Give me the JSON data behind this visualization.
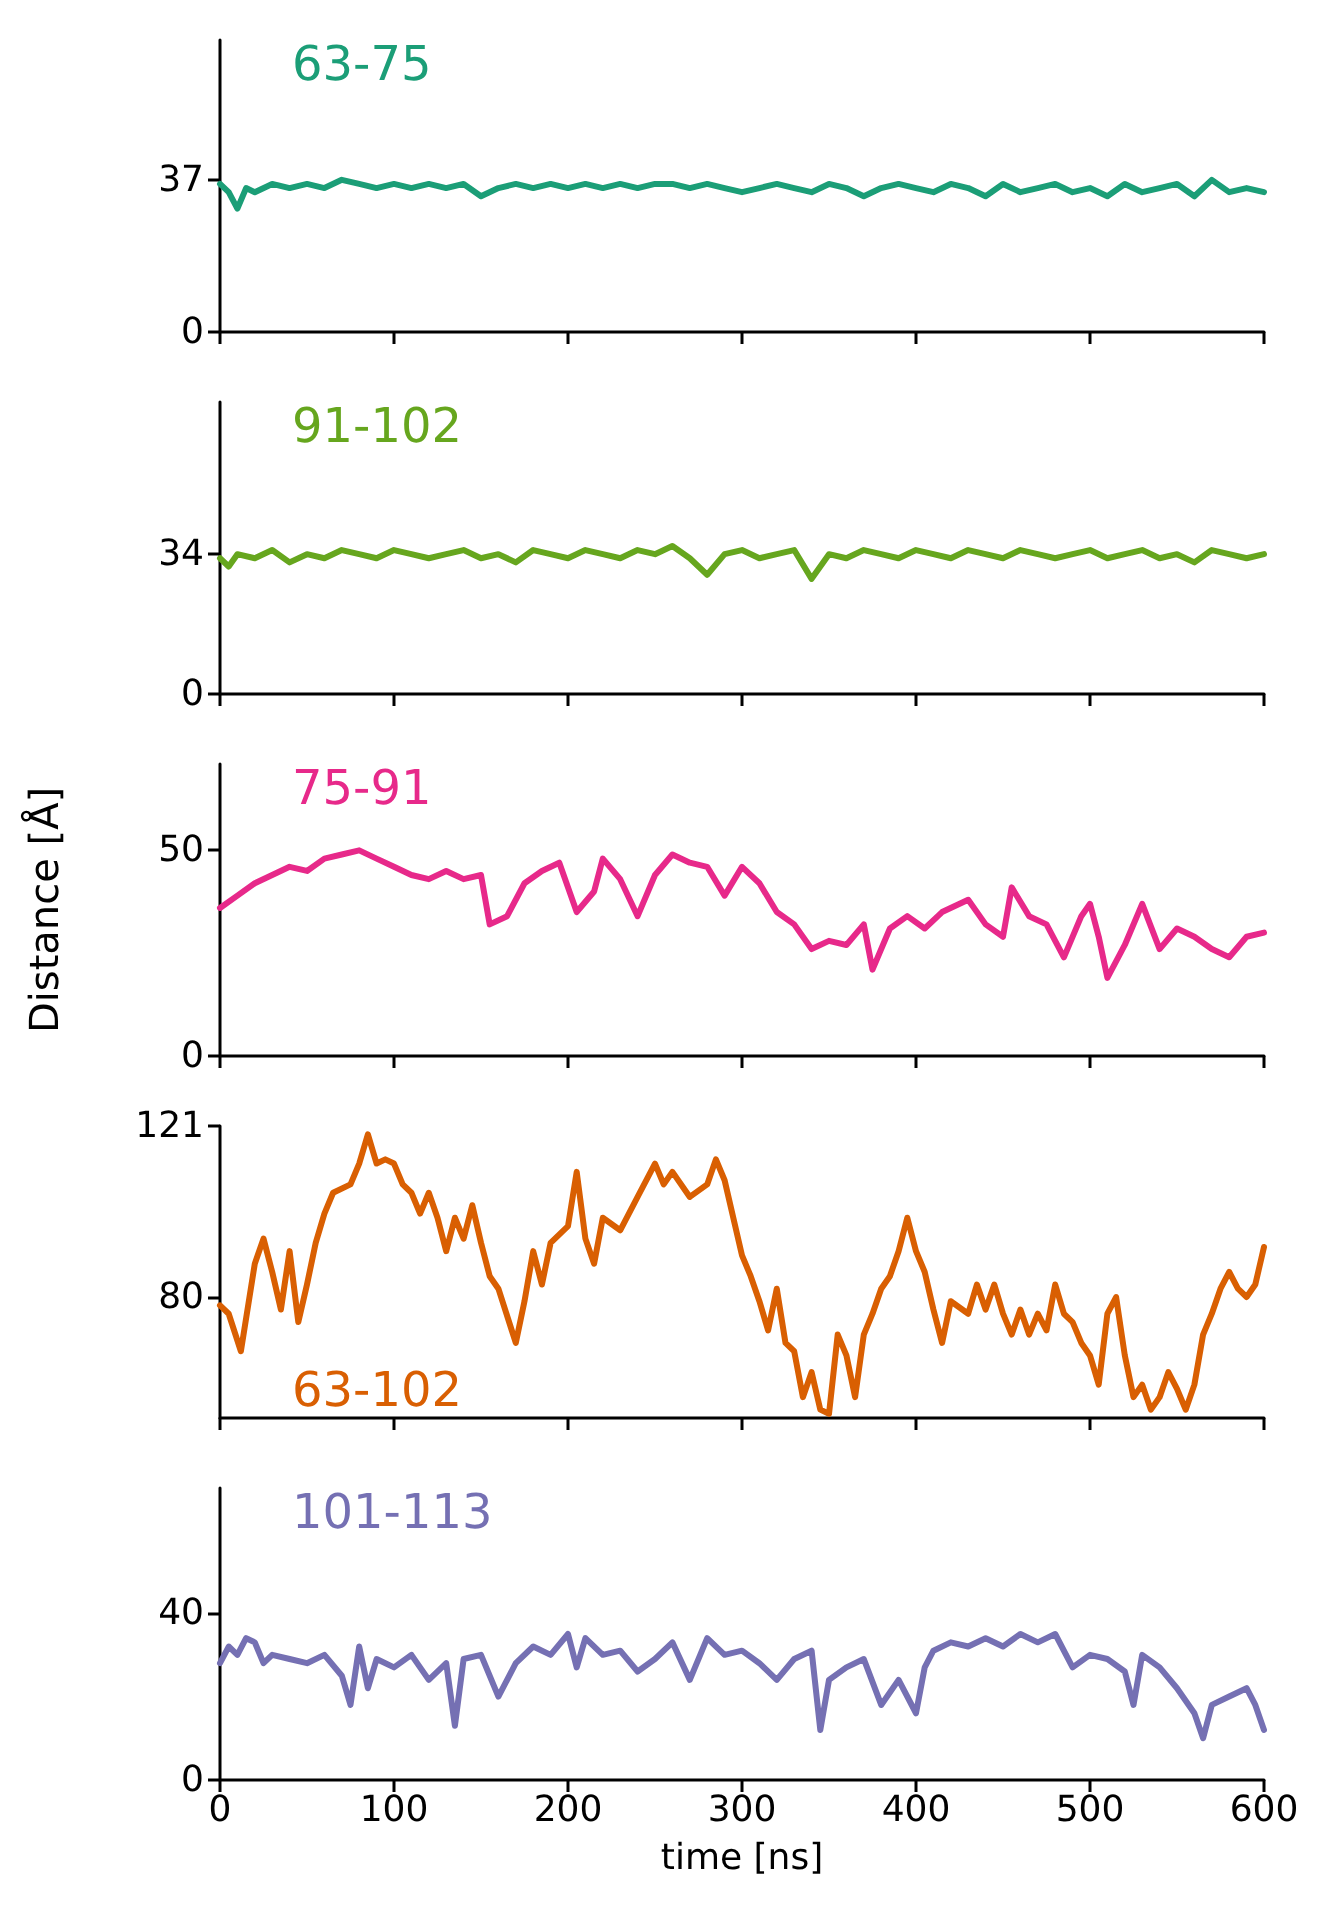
{
  "chart_data": [
    {
      "type": "line",
      "legend": "top left",
      "tick_labels": "y",
      "xlim": [
        0,
        600
      ],
      "xticks": [
        0,
        100,
        200,
        300,
        400,
        500,
        600
      ],
      "ylim": [
        0,
        71
      ],
      "yticks": [
        0,
        37
      ],
      "x": [
        0,
        5,
        10,
        15,
        20,
        30,
        40,
        50,
        60,
        70,
        80,
        90,
        100,
        110,
        120,
        130,
        140,
        150,
        160,
        170,
        180,
        190,
        200,
        210,
        220,
        230,
        240,
        250,
        260,
        270,
        280,
        290,
        300,
        310,
        320,
        330,
        340,
        350,
        360,
        370,
        380,
        390,
        400,
        410,
        420,
        430,
        440,
        450,
        460,
        470,
        480,
        490,
        500,
        510,
        520,
        530,
        540,
        550,
        560,
        570,
        580,
        590,
        600
      ],
      "series": [
        {
          "name": "63-75",
          "color": "#1b9e77",
          "values": [
            36,
            34,
            30,
            35,
            34,
            36,
            35,
            36,
            35,
            37,
            36,
            35,
            36,
            35,
            36,
            35,
            36,
            33,
            35,
            36,
            35,
            36,
            35,
            36,
            35,
            36,
            35,
            36,
            36,
            35,
            36,
            35,
            34,
            35,
            36,
            35,
            34,
            36,
            35,
            33,
            35,
            36,
            35,
            34,
            36,
            35,
            33,
            36,
            34,
            35,
            36,
            34,
            35,
            33,
            36,
            34,
            35,
            36,
            33,
            37,
            34,
            35,
            34
          ]
        }
      ]
    },
    {
      "type": "line",
      "legend": "top left",
      "tick_labels": "y",
      "xlim": [
        0,
        600
      ],
      "xticks": [
        0,
        100,
        200,
        300,
        400,
        500,
        600
      ],
      "ylim": [
        0,
        71
      ],
      "yticks": [
        0,
        34
      ],
      "x": [
        0,
        5,
        10,
        20,
        30,
        40,
        50,
        60,
        70,
        80,
        90,
        100,
        110,
        120,
        130,
        140,
        150,
        160,
        170,
        180,
        190,
        200,
        210,
        220,
        230,
        240,
        250,
        260,
        270,
        280,
        290,
        300,
        310,
        320,
        330,
        340,
        350,
        360,
        370,
        380,
        390,
        400,
        410,
        420,
        430,
        440,
        450,
        460,
        470,
        480,
        490,
        500,
        510,
        520,
        530,
        540,
        550,
        560,
        570,
        580,
        590,
        600
      ],
      "series": [
        {
          "name": "91-102",
          "color": "#66a61e",
          "values": [
            33,
            31,
            34,
            33,
            35,
            32,
            34,
            33,
            35,
            34,
            33,
            35,
            34,
            33,
            34,
            35,
            33,
            34,
            32,
            35,
            34,
            33,
            35,
            34,
            33,
            35,
            34,
            36,
            33,
            29,
            34,
            35,
            33,
            34,
            35,
            28,
            34,
            33,
            35,
            34,
            33,
            35,
            34,
            33,
            35,
            34,
            33,
            35,
            34,
            33,
            34,
            35,
            33,
            34,
            35,
            33,
            34,
            32,
            35,
            34,
            33,
            34
          ]
        }
      ]
    },
    {
      "type": "line",
      "legend": "top left",
      "tick_labels": "y",
      "ylabel": "Distance [Å]",
      "xlim": [
        0,
        600
      ],
      "xticks": [
        0,
        100,
        200,
        300,
        400,
        500,
        600
      ],
      "ylim": [
        0,
        71
      ],
      "yticks": [
        0,
        50
      ],
      "x": [
        0,
        10,
        20,
        30,
        40,
        50,
        60,
        70,
        80,
        90,
        100,
        110,
        120,
        130,
        140,
        150,
        155,
        165,
        175,
        185,
        195,
        205,
        215,
        220,
        230,
        240,
        250,
        260,
        270,
        280,
        290,
        300,
        310,
        320,
        330,
        340,
        350,
        360,
        370,
        375,
        385,
        395,
        405,
        415,
        430,
        440,
        450,
        455,
        465,
        475,
        485,
        495,
        500,
        505,
        510,
        520,
        530,
        540,
        550,
        560,
        570,
        580,
        590,
        600
      ],
      "series": [
        {
          "name": "75-91",
          "color": "#e7298a",
          "values": [
            36,
            39,
            42,
            44,
            46,
            45,
            48,
            49,
            50,
            48,
            46,
            44,
            43,
            45,
            43,
            44,
            32,
            34,
            42,
            45,
            47,
            35,
            40,
            48,
            43,
            34,
            44,
            49,
            47,
            46,
            39,
            46,
            42,
            35,
            32,
            26,
            28,
            27,
            32,
            21,
            31,
            34,
            31,
            35,
            38,
            32,
            29,
            41,
            34,
            32,
            24,
            34,
            37,
            29,
            19,
            27,
            37,
            26,
            31,
            29,
            26,
            24,
            29,
            30
          ]
        }
      ]
    },
    {
      "type": "line",
      "legend": "bottom left",
      "tick_labels": "y",
      "xlim": [
        0,
        600
      ],
      "xticks": [
        0,
        100,
        200,
        300,
        400,
        500,
        600
      ],
      "ylim": [
        51,
        121
      ],
      "yticks": [
        80,
        121
      ],
      "x": [
        0,
        5,
        12,
        20,
        25,
        30,
        35,
        40,
        45,
        50,
        55,
        60,
        65,
        75,
        80,
        85,
        90,
        95,
        100,
        105,
        110,
        115,
        120,
        125,
        130,
        135,
        140,
        145,
        150,
        155,
        160,
        170,
        175,
        180,
        185,
        190,
        200,
        205,
        210,
        215,
        220,
        230,
        240,
        250,
        255,
        260,
        270,
        280,
        285,
        290,
        300,
        305,
        310,
        315,
        320,
        325,
        330,
        335,
        340,
        345,
        350,
        355,
        360,
        365,
        370,
        375,
        380,
        385,
        390,
        395,
        400,
        405,
        410,
        415,
        420,
        430,
        435,
        440,
        445,
        450,
        455,
        460,
        465,
        470,
        475,
        480,
        485,
        490,
        495,
        500,
        505,
        510,
        515,
        520,
        525,
        530,
        535,
        540,
        545,
        550,
        555,
        560,
        565,
        570,
        575,
        580,
        585,
        590,
        595,
        600
      ],
      "series": [
        {
          "name": "63-102",
          "color": "#d95f02",
          "values": [
            78,
            76,
            67,
            88,
            94,
            86,
            77,
            91,
            74,
            83,
            93,
            100,
            105,
            107,
            112,
            119,
            112,
            113,
            112,
            107,
            105,
            100,
            105,
            99,
            91,
            99,
            94,
            102,
            93,
            85,
            82,
            69,
            79,
            91,
            83,
            93,
            97,
            110,
            94,
            88,
            99,
            96,
            104,
            112,
            107,
            110,
            104,
            107,
            113,
            108,
            90,
            85,
            79,
            72,
            82,
            69,
            67,
            56,
            62,
            53,
            52,
            71,
            66,
            56,
            71,
            76,
            82,
            85,
            91,
            99,
            91,
            86,
            77,
            69,
            79,
            76,
            83,
            77,
            83,
            76,
            71,
            77,
            71,
            76,
            72,
            83,
            76,
            74,
            69,
            66,
            59,
            76,
            80,
            66,
            56,
            59,
            53,
            56,
            62,
            58,
            53,
            59,
            71,
            76,
            82,
            86,
            82,
            80,
            83,
            92
          ]
        }
      ]
    },
    {
      "type": "line",
      "legend": "top left",
      "xlabel": "time [ns]",
      "xlim": [
        0,
        600
      ],
      "xticks": [
        0,
        100,
        200,
        300,
        400,
        500,
        600
      ],
      "ylim": [
        0,
        70
      ],
      "yticks": [
        0,
        40
      ],
      "x": [
        0,
        5,
        10,
        15,
        20,
        25,
        30,
        40,
        50,
        60,
        70,
        75,
        80,
        85,
        90,
        100,
        110,
        120,
        130,
        135,
        140,
        150,
        160,
        170,
        180,
        190,
        200,
        205,
        210,
        220,
        230,
        240,
        250,
        260,
        270,
        280,
        290,
        300,
        310,
        320,
        330,
        340,
        345,
        350,
        360,
        370,
        380,
        390,
        400,
        405,
        410,
        420,
        430,
        440,
        450,
        460,
        470,
        480,
        490,
        500,
        510,
        520,
        525,
        530,
        540,
        550,
        560,
        565,
        570,
        580,
        590,
        595,
        600
      ],
      "series": [
        {
          "name": "101-113",
          "color": "#7570b3",
          "values": [
            28,
            32,
            30,
            34,
            33,
            28,
            30,
            29,
            28,
            30,
            25,
            18,
            32,
            22,
            29,
            27,
            30,
            24,
            28,
            13,
            29,
            30,
            20,
            28,
            32,
            30,
            35,
            27,
            34,
            30,
            31,
            26,
            29,
            33,
            24,
            34,
            30,
            31,
            28,
            24,
            29,
            31,
            12,
            24,
            27,
            29,
            18,
            24,
            16,
            27,
            31,
            33,
            32,
            34,
            32,
            35,
            33,
            35,
            27,
            30,
            29,
            26,
            18,
            30,
            27,
            22,
            16,
            10,
            18,
            20,
            22,
            18,
            12
          ]
        }
      ]
    }
  ]
}
